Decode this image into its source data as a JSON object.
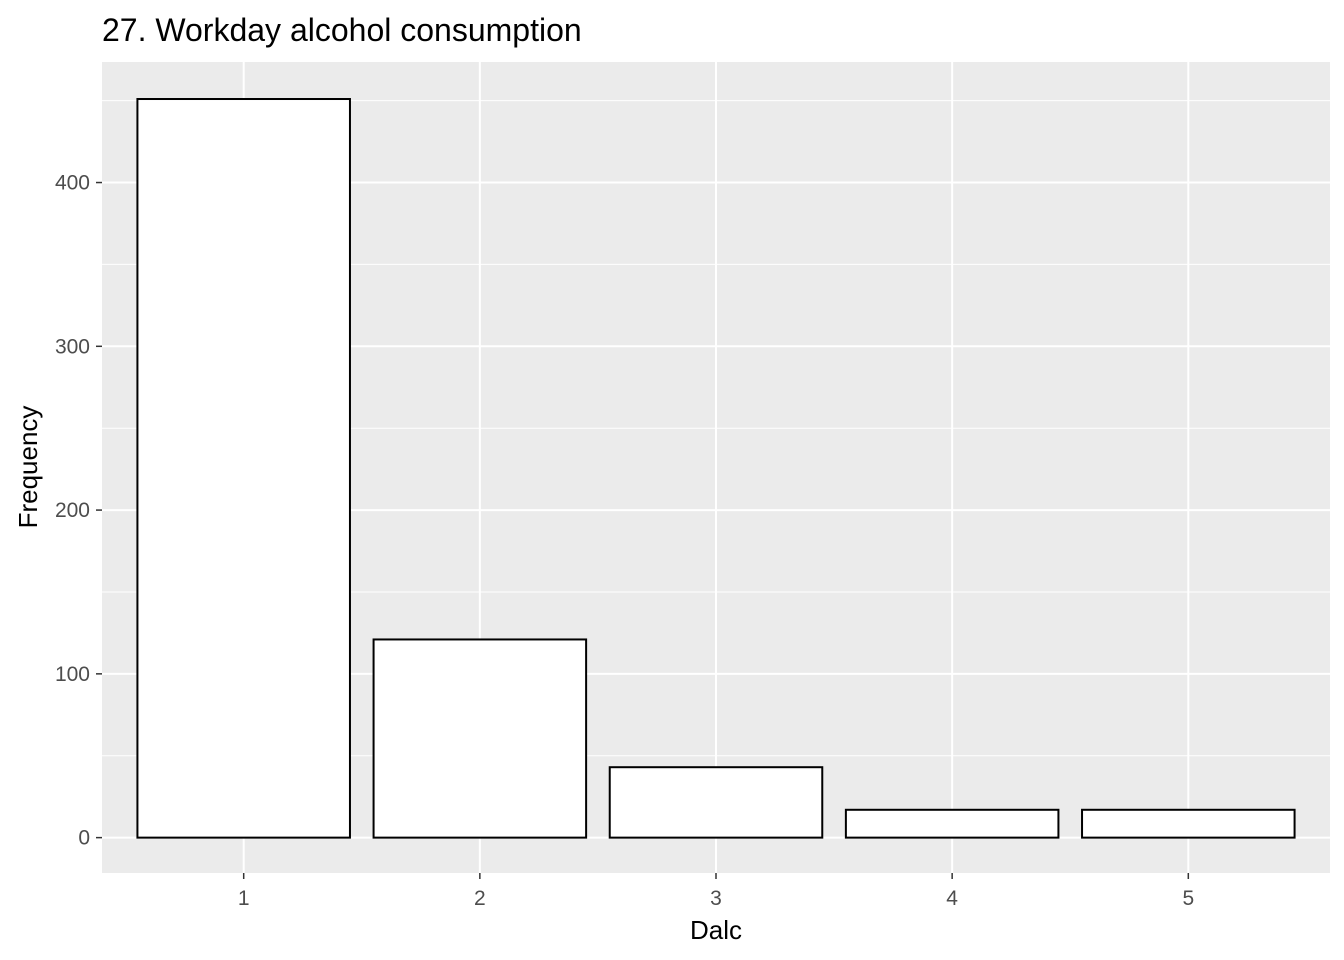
{
  "chart_data": {
    "type": "bar",
    "title": "27. Workday alcohol consumption",
    "xlabel": "Dalc",
    "ylabel": "Frequency",
    "categories": [
      "1",
      "2",
      "3",
      "4",
      "5"
    ],
    "values": [
      451,
      121,
      43,
      17,
      17
    ],
    "ylim": [
      -21.6,
      473.6
    ],
    "yticks": [
      0,
      100,
      200,
      300,
      400
    ],
    "yticks_minor": [
      50,
      150,
      250,
      350,
      450
    ],
    "ytick_labels": [
      "0",
      "100",
      "200",
      "300",
      "400"
    ],
    "grid": true,
    "legend": "none",
    "colors": {
      "panel_background": "#ebebeb",
      "bar_fill": "#ffffff",
      "bar_outline": "#000000",
      "gridline": "#ffffff",
      "tick_label": "#4d4d4d"
    }
  }
}
